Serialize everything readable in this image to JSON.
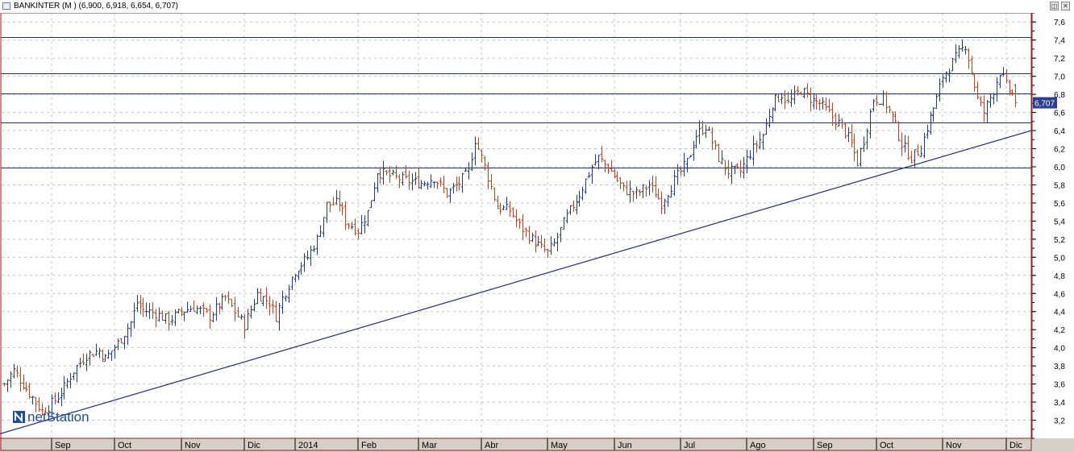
{
  "window": {
    "title": "BANKINTER (M ) (6,900, 6,918, 6,654, 6,707)",
    "restore_glyph": "◫",
    "close_glyph": "✕"
  },
  "watermark": {
    "brand": "netStation"
  },
  "colors": {
    "up_bar": "#1f3c8c",
    "down_bar": "#c8401a",
    "lines": "#1f2f7a",
    "grid": "#c4c4c4",
    "frame": "#9a1f1f",
    "price_badge": "#2a3f8f"
  },
  "chart_data": {
    "type": "ohlc",
    "symbol": "BANKINTER",
    "last_ohlc": {
      "open": 6.9,
      "high": 6.918,
      "low": 6.654,
      "close": 6.707
    },
    "last_price_label": "6,707",
    "ylim": [
      3.0,
      7.7
    ],
    "y_ticks": [
      "3,2",
      "3,4",
      "3,6",
      "3,8",
      "4,0",
      "4,2",
      "4,4",
      "4,6",
      "4,8",
      "5,0",
      "5,2",
      "5,4",
      "5,6",
      "5,8",
      "6,0",
      "6,2",
      "6,4",
      "6,6",
      "6,8",
      "7,0",
      "7,2",
      "7,4",
      "7,6"
    ],
    "x_month_labels": [
      "Sep",
      "Oct",
      "Nov",
      "Dic",
      "2014",
      "Feb",
      "Mar",
      "Abr",
      "May",
      "Jun",
      "Jul",
      "Ago",
      "Sep",
      "Oct",
      "Nov",
      "Dic"
    ],
    "horizontal_levels": [
      7.43,
      7.03,
      6.81,
      6.49,
      5.99
    ],
    "trendline": {
      "start": {
        "day_index": 0,
        "value": 3.05
      },
      "end": {
        "day_index": 325,
        "value": 6.4
      }
    },
    "price_path": [
      [
        0,
        3.6
      ],
      [
        3,
        3.75
      ],
      [
        8,
        3.5
      ],
      [
        12,
        3.3
      ],
      [
        14,
        3.35
      ],
      [
        18,
        3.5
      ],
      [
        22,
        3.75
      ],
      [
        26,
        3.92
      ],
      [
        30,
        3.97
      ],
      [
        32,
        3.88
      ],
      [
        36,
        4.05
      ],
      [
        40,
        4.28
      ],
      [
        42,
        4.5
      ],
      [
        44,
        4.42
      ],
      [
        48,
        4.38
      ],
      [
        52,
        4.3
      ],
      [
        56,
        4.4
      ],
      [
        60,
        4.45
      ],
      [
        65,
        4.35
      ],
      [
        70,
        4.55
      ],
      [
        74,
        4.35
      ],
      [
        76,
        4.25
      ],
      [
        80,
        4.6
      ],
      [
        84,
        4.5
      ],
      [
        86,
        4.35
      ],
      [
        88,
        4.55
      ],
      [
        92,
        4.85
      ],
      [
        96,
        5.0
      ],
      [
        99,
        5.2
      ],
      [
        102,
        5.58
      ],
      [
        106,
        5.6
      ],
      [
        108,
        5.4
      ],
      [
        112,
        5.3
      ],
      [
        115,
        5.5
      ],
      [
        118,
        5.95
      ],
      [
        122,
        5.9
      ],
      [
        127,
        5.85
      ],
      [
        132,
        5.82
      ],
      [
        136,
        5.88
      ],
      [
        140,
        5.7
      ],
      [
        144,
        5.82
      ],
      [
        147,
        5.95
      ],
      [
        149,
        6.3
      ],
      [
        152,
        6.0
      ],
      [
        156,
        5.55
      ],
      [
        160,
        5.52
      ],
      [
        163,
        5.35
      ],
      [
        167,
        5.2
      ],
      [
        170,
        5.1
      ],
      [
        172,
        5.05
      ],
      [
        174,
        5.15
      ],
      [
        178,
        5.45
      ],
      [
        182,
        5.7
      ],
      [
        186,
        6.0
      ],
      [
        188,
        6.1
      ],
      [
        192,
        5.95
      ],
      [
        196,
        5.75
      ],
      [
        200,
        5.7
      ],
      [
        204,
        5.8
      ],
      [
        208,
        5.6
      ],
      [
        212,
        5.85
      ],
      [
        216,
        6.05
      ],
      [
        219,
        6.35
      ],
      [
        222,
        6.45
      ],
      [
        226,
        6.1
      ],
      [
        229,
        5.95
      ],
      [
        233,
        5.95
      ],
      [
        236,
        6.15
      ],
      [
        240,
        6.35
      ],
      [
        243,
        6.7
      ],
      [
        246,
        6.8
      ],
      [
        248,
        6.7
      ],
      [
        252,
        6.85
      ],
      [
        255,
        6.75
      ],
      [
        258,
        6.7
      ],
      [
        262,
        6.55
      ],
      [
        265,
        6.45
      ],
      [
        268,
        6.25
      ],
      [
        270,
        6.05
      ],
      [
        272,
        6.3
      ],
      [
        275,
        6.75
      ],
      [
        278,
        6.75
      ],
      [
        281,
        6.55
      ],
      [
        284,
        6.25
      ],
      [
        287,
        6.1
      ],
      [
        290,
        6.2
      ],
      [
        293,
        6.55
      ],
      [
        295,
        6.75
      ],
      [
        297,
        7.0
      ],
      [
        300,
        7.15
      ],
      [
        302,
        7.25
      ],
      [
        304,
        7.35
      ],
      [
        306,
        7.05
      ],
      [
        308,
        6.75
      ],
      [
        310,
        6.6
      ],
      [
        313,
        6.85
      ],
      [
        315,
        7.05
      ],
      [
        317,
        6.9
      ],
      [
        319,
        6.8
      ],
      [
        320,
        6.71
      ]
    ]
  }
}
